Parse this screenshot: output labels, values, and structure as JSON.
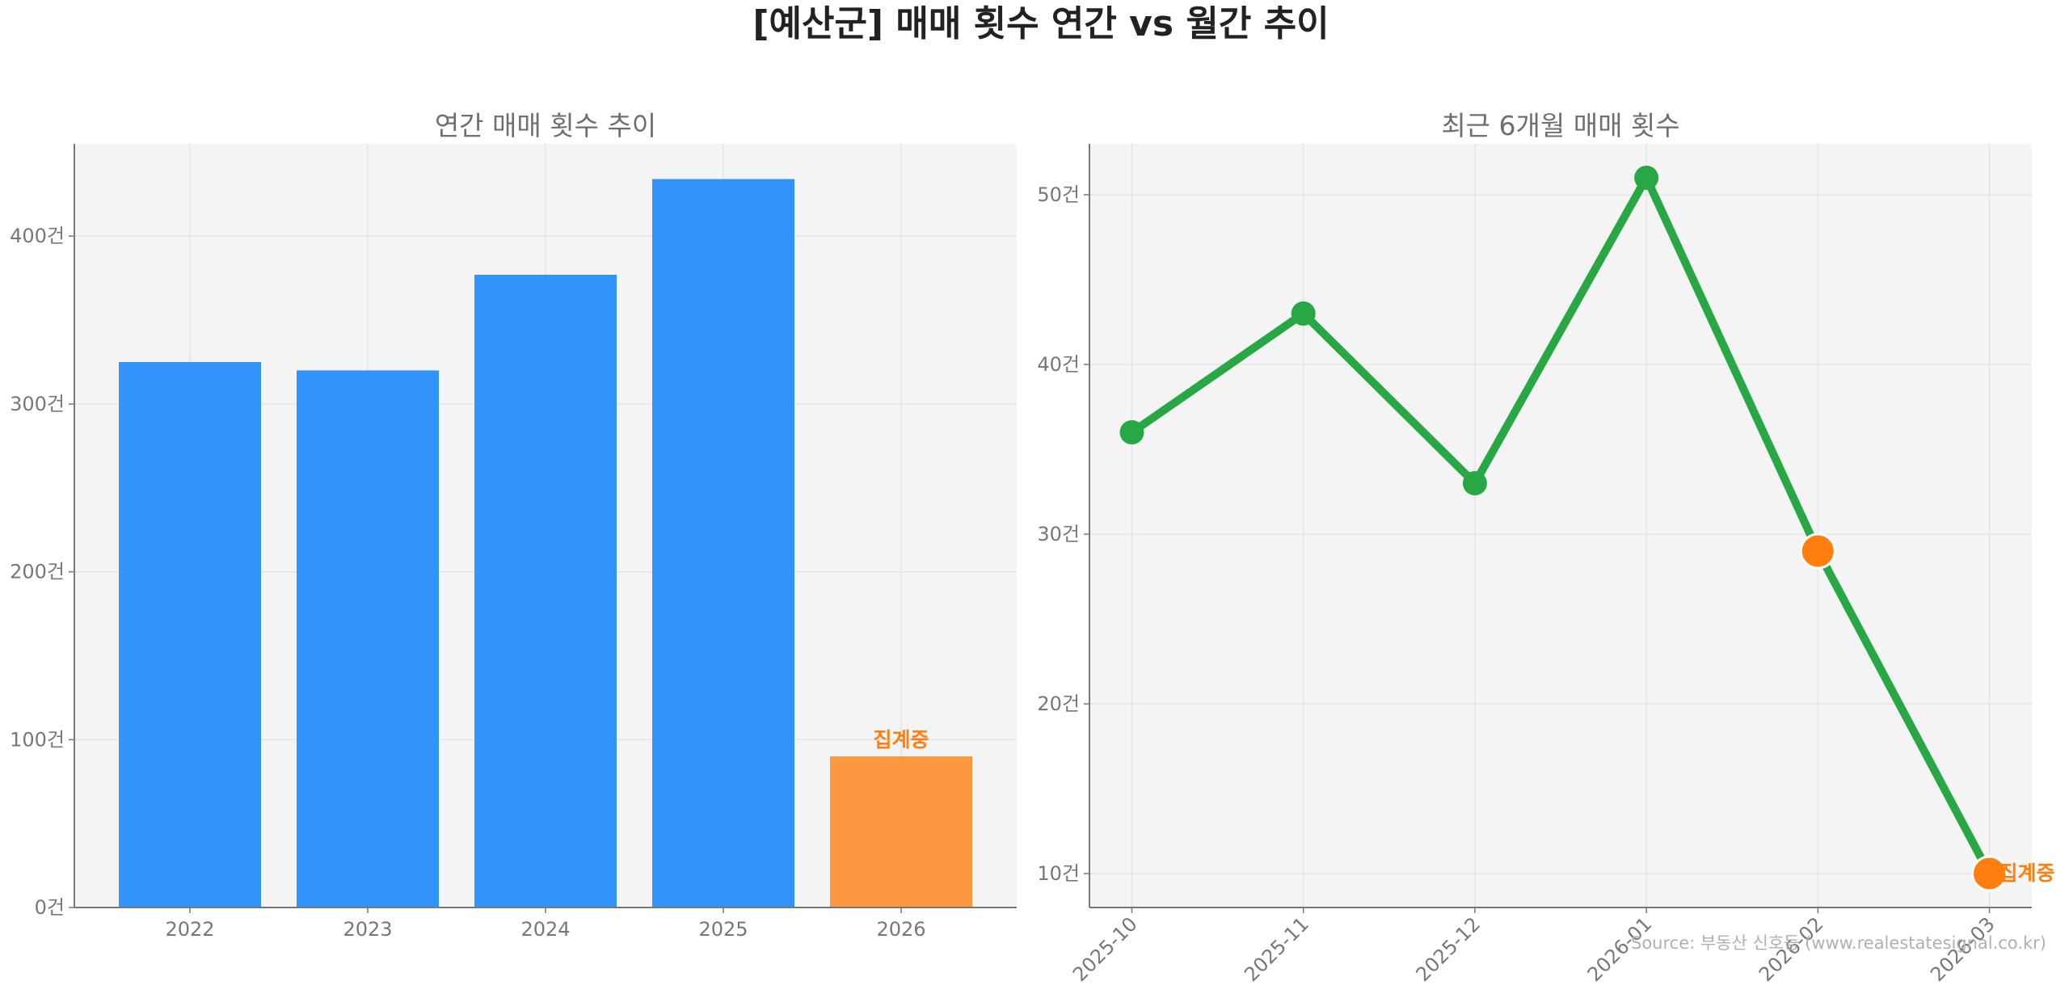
{
  "figure": {
    "title": "[예산군] 매매 횟수 연간 vs 월간 추이",
    "source": "Source: 부동산 신호등 (www.realestatesignal.co.kr)"
  },
  "chart_data": [
    {
      "type": "bar",
      "title": "연간 매매 횟수 추이",
      "xlabel": "",
      "ylabel": "",
      "categories": [
        "2022",
        "2023",
        "2024",
        "2025",
        "2026"
      ],
      "values": [
        325,
        320,
        377,
        434,
        90
      ],
      "ylim": [
        0,
        455
      ],
      "yticks": [
        0,
        100,
        200,
        300,
        400
      ],
      "ytick_labels": [
        "0건",
        "100건",
        "200건",
        "300건",
        "400건"
      ],
      "bar_colors": [
        "#3293fb",
        "#3293fb",
        "#3293fb",
        "#3293fb",
        "#fa973f"
      ],
      "annotations": [
        {
          "category": "2026",
          "text": "집계중",
          "color": "#ff7f0e"
        }
      ],
      "grid": true,
      "background": "#f4f4f4"
    },
    {
      "type": "line",
      "title": "최근 6개월 매매 횟수",
      "xlabel": "",
      "ylabel": "",
      "x": [
        "2025-10",
        "2025-11",
        "2025-12",
        "2026-01",
        "2026-02",
        "2026-03"
      ],
      "values": [
        36,
        43,
        33,
        51,
        29,
        10
      ],
      "ylim": [
        8,
        53
      ],
      "yticks": [
        10,
        20,
        30,
        40,
        50
      ],
      "ytick_labels": [
        "10건",
        "20건",
        "30건",
        "40건",
        "50건"
      ],
      "line_color": "#28a745",
      "highlight_points": [
        "2026-02",
        "2026-03"
      ],
      "highlight_color": "#ff7f0e",
      "annotations": [
        {
          "x": "2026-03",
          "text": "집계중",
          "color": "#ff7f0e"
        }
      ],
      "grid": true,
      "background": "#f4f4f4"
    }
  ]
}
